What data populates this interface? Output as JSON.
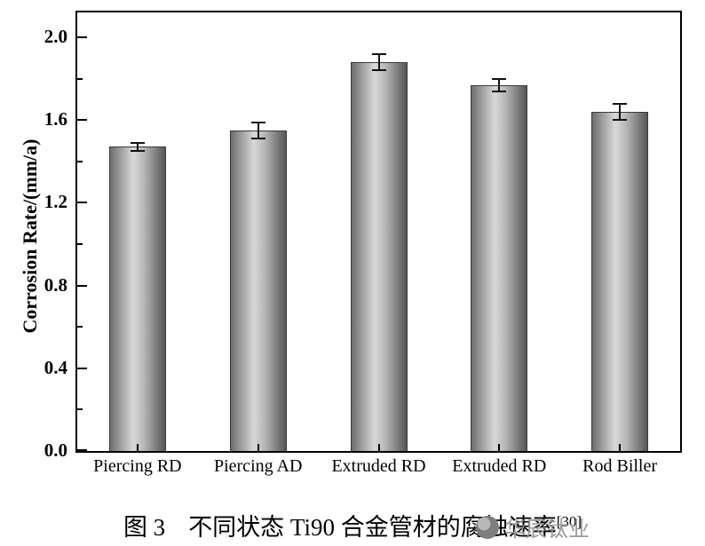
{
  "chart_data": {
    "type": "bar",
    "title": "",
    "categories": [
      "Piercing RD",
      "Piercing AD",
      "Extruded RD",
      "Extruded RD",
      "Rod Biller"
    ],
    "values": [
      1.47,
      1.55,
      1.88,
      1.77,
      1.64
    ],
    "errors": [
      0.02,
      0.04,
      0.04,
      0.03,
      0.04
    ],
    "ylabel": "Corrosion Rate/(mm/a)",
    "xlabel": "",
    "ylim": [
      0,
      2.12
    ],
    "ytick_major": 0.4,
    "ytick_minor": 0.2,
    "ytick_labels": [
      "0.0",
      "0.4",
      "0.8",
      "1.2",
      "1.6",
      "2.0"
    ],
    "grid": false,
    "legend": "none",
    "bar_edge_color": "#3a3a3a",
    "bar_gradient": [
      "#6e6e6e",
      "#d8d8d8",
      "#b5b5b5",
      "#565656"
    ]
  },
  "caption": {
    "prefix": "图 3",
    "text": "不同状态 Ti90 合金管材的腐蚀速率",
    "superscript": "[30]"
  },
  "watermark": {
    "logo": "circle-logo",
    "text": "华辰钛业"
  }
}
